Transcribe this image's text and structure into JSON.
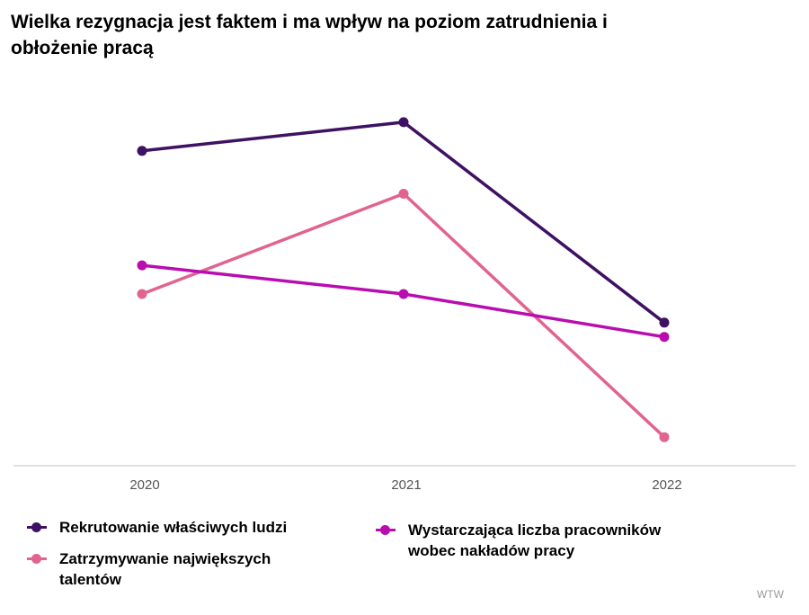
{
  "title": "Wielka rezygnacja jest faktem i ma wpływ na poziom zatrudnienia i obłożenie pracą",
  "source": "WTW",
  "chart_data": {
    "type": "line",
    "x": [
      "2020",
      "2021",
      "2022"
    ],
    "ylim": [
      0,
      100
    ],
    "grid": false,
    "legend_position": "bottom",
    "series": [
      {
        "name": "Rekrutowanie właściwych ludzi",
        "color": "#3e1163",
        "values": [
          88,
          96,
          40
        ]
      },
      {
        "name": "Zatrzymywanie największych talentów",
        "color": "#e0648f",
        "values": [
          48,
          76,
          8
        ]
      },
      {
        "name": "Wystarczająca liczba pracowników wobec nakładów pracy",
        "color": "#b90db0",
        "values": [
          56,
          48,
          36
        ]
      }
    ]
  }
}
